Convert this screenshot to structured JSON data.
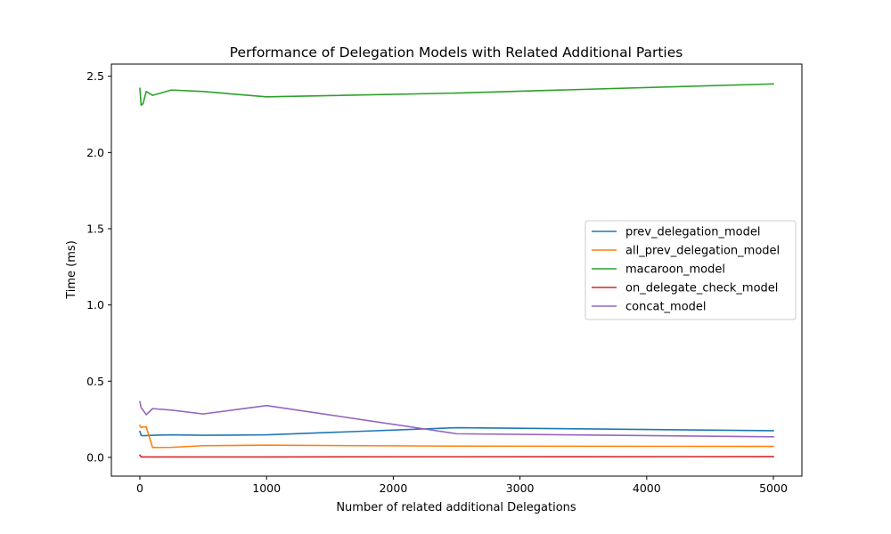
{
  "chart_data": {
    "type": "line",
    "title": "Performance of Delegation Models with Related Additional Parties",
    "xlabel": "Number of related additional Delegations",
    "ylabel": "Time (ms)",
    "xlim": [
      -225,
      5225
    ],
    "ylim": [
      -0.123,
      2.58
    ],
    "xticks": [
      0,
      1000,
      2000,
      3000,
      4000,
      5000
    ],
    "xtick_labels": [
      "0",
      "1000",
      "2000",
      "3000",
      "4000",
      "5000"
    ],
    "yticks": [
      0.0,
      0.5,
      1.0,
      1.5,
      2.0,
      2.5
    ],
    "ytick_labels": [
      "0.0",
      "0.5",
      "1.0",
      "1.5",
      "2.0",
      "2.5"
    ],
    "grid": false,
    "legend_position": "center-right",
    "series": [
      {
        "name": "prev_delegation_model",
        "color": "#1f77b4",
        "x": [
          0,
          10,
          25,
          50,
          100,
          250,
          500,
          1000,
          2500,
          5000
        ],
        "y": [
          0.17,
          0.145,
          0.142,
          0.143,
          0.145,
          0.148,
          0.145,
          0.148,
          0.195,
          0.175
        ]
      },
      {
        "name": "all_prev_delegation_model",
        "color": "#ff7f0e",
        "x": [
          0,
          10,
          25,
          50,
          100,
          250,
          500,
          1000,
          2500,
          5000
        ],
        "y": [
          0.21,
          0.195,
          0.2,
          0.2,
          0.065,
          0.066,
          0.077,
          0.08,
          0.074,
          0.072
        ]
      },
      {
        "name": "macaroon_model",
        "color": "#2ca02c",
        "x": [
          0,
          10,
          25,
          50,
          100,
          250,
          500,
          1000,
          2500,
          5000
        ],
        "y": [
          2.42,
          2.31,
          2.32,
          2.4,
          2.375,
          2.41,
          2.4,
          2.365,
          2.39,
          2.45
        ]
      },
      {
        "name": "on_delegate_check_model",
        "color": "#d62728",
        "x": [
          0,
          10,
          25,
          50,
          100,
          250,
          500,
          1000,
          2500,
          5000
        ],
        "y": [
          0.015,
          0.003,
          0.003,
          0.003,
          0.003,
          0.003,
          0.003,
          0.003,
          0.004,
          0.005
        ]
      },
      {
        "name": "concat_model",
        "color": "#9467bd",
        "x": [
          0,
          10,
          25,
          50,
          100,
          250,
          500,
          1000,
          2500,
          5000
        ],
        "y": [
          0.365,
          0.325,
          0.31,
          0.28,
          0.32,
          0.31,
          0.285,
          0.34,
          0.155,
          0.135
        ]
      }
    ]
  }
}
